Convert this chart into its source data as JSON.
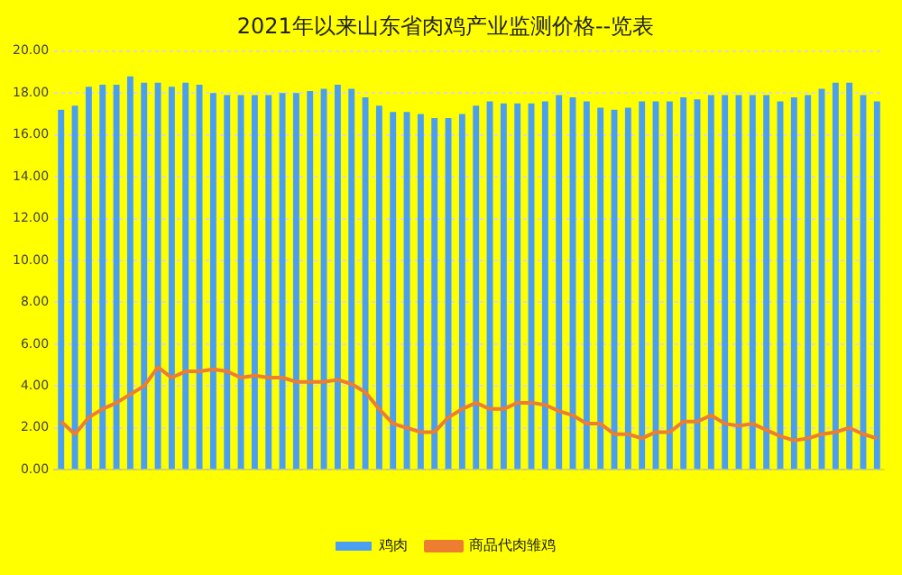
{
  "chart_data": {
    "type": "bar",
    "title": "2021年以来山东省肉鸡产业监测价格--览表",
    "categories": [
      null,
      null,
      null,
      null,
      null,
      null,
      null,
      null,
      null,
      null,
      null,
      null,
      null,
      null,
      null,
      null,
      null,
      null,
      null,
      null,
      null,
      null,
      null,
      null,
      null,
      null,
      null,
      null,
      null,
      null,
      null,
      null,
      null,
      null,
      null,
      null,
      null,
      null,
      null,
      null,
      null,
      null,
      null,
      null,
      null,
      null,
      null,
      null,
      null,
      null,
      null,
      null,
      null,
      null,
      null,
      null,
      null,
      null,
      null,
      null
    ],
    "series": [
      {
        "name": "鸡肉",
        "color": "#4a9ff0",
        "values": [
          17.2,
          17.4,
          18.3,
          18.4,
          18.4,
          18.8,
          18.5,
          18.5,
          18.3,
          18.5,
          18.4,
          18.0,
          17.9,
          17.9,
          17.9,
          17.9,
          18.0,
          18.0,
          18.1,
          18.2,
          18.4,
          18.2,
          17.8,
          17.4,
          17.1,
          17.1,
          17.0,
          16.8,
          16.8,
          17.0,
          17.4,
          17.6,
          17.5,
          17.5,
          17.5,
          17.6,
          17.9,
          17.8,
          17.6,
          17.3,
          17.2,
          17.3,
          17.6,
          17.6,
          17.6,
          17.8,
          17.7,
          17.9,
          17.9,
          17.9,
          17.9,
          17.9,
          17.6,
          17.8,
          17.9,
          18.2,
          18.5,
          18.5,
          17.9,
          17.6
        ]
      },
      {
        "name": "商品代肉雏鸡",
        "type": "line",
        "color": "#ed7d31",
        "values": [
          2.3,
          1.7,
          2.5,
          2.9,
          3.2,
          3.6,
          4.0,
          4.9,
          4.4,
          4.7,
          4.7,
          4.8,
          4.7,
          4.4,
          4.5,
          4.4,
          4.4,
          4.2,
          4.2,
          4.2,
          4.3,
          4.1,
          3.7,
          2.9,
          2.2,
          2.0,
          1.8,
          1.8,
          2.5,
          2.9,
          3.2,
          2.9,
          2.9,
          3.2,
          3.2,
          3.1,
          2.8,
          2.6,
          2.2,
          2.2,
          1.7,
          1.7,
          1.5,
          1.8,
          1.8,
          2.3,
          2.3,
          2.6,
          2.2,
          2.1,
          2.2,
          1.9,
          1.6,
          1.4,
          1.5,
          1.7,
          1.8,
          2.0,
          1.7,
          1.5
        ]
      }
    ],
    "ylim": [
      0,
      20
    ],
    "yticks": [
      {
        "value": 0,
        "label": "0.00"
      },
      {
        "value": 2,
        "label": "2.00"
      },
      {
        "value": 4,
        "label": "4.00"
      },
      {
        "value": 6,
        "label": "6.00"
      },
      {
        "value": 8,
        "label": "8.00"
      },
      {
        "value": 10,
        "label": "10.00"
      },
      {
        "value": 12,
        "label": "12.00"
      },
      {
        "value": 14,
        "label": "14.00"
      },
      {
        "value": 16,
        "label": "16.00"
      },
      {
        "value": 18,
        "label": "18.00"
      },
      {
        "value": 20,
        "label": "20.00"
      }
    ],
    "grid": "y",
    "legend": "bottom",
    "marker": "none"
  }
}
